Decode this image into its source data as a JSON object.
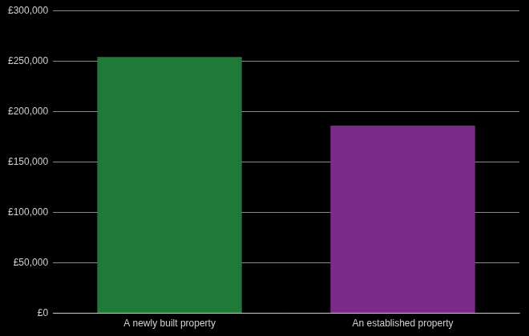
{
  "chart_data": {
    "type": "bar",
    "categories": [
      "A newly built property",
      "An established property"
    ],
    "values": [
      254000,
      186000
    ],
    "colors": [
      "#1f7a3a",
      "#7a2c88"
    ],
    "ylim": [
      0,
      300000
    ],
    "yticks": [
      {
        "value": 0,
        "label": "£0"
      },
      {
        "value": 50000,
        "label": "£50,000"
      },
      {
        "value": 100000,
        "label": "£100,000"
      },
      {
        "value": 150000,
        "label": "£150,000"
      },
      {
        "value": 200000,
        "label": "£200,000"
      },
      {
        "value": 250000,
        "label": "£250,000"
      },
      {
        "value": 300000,
        "label": "£300,000"
      }
    ],
    "grid": true
  }
}
